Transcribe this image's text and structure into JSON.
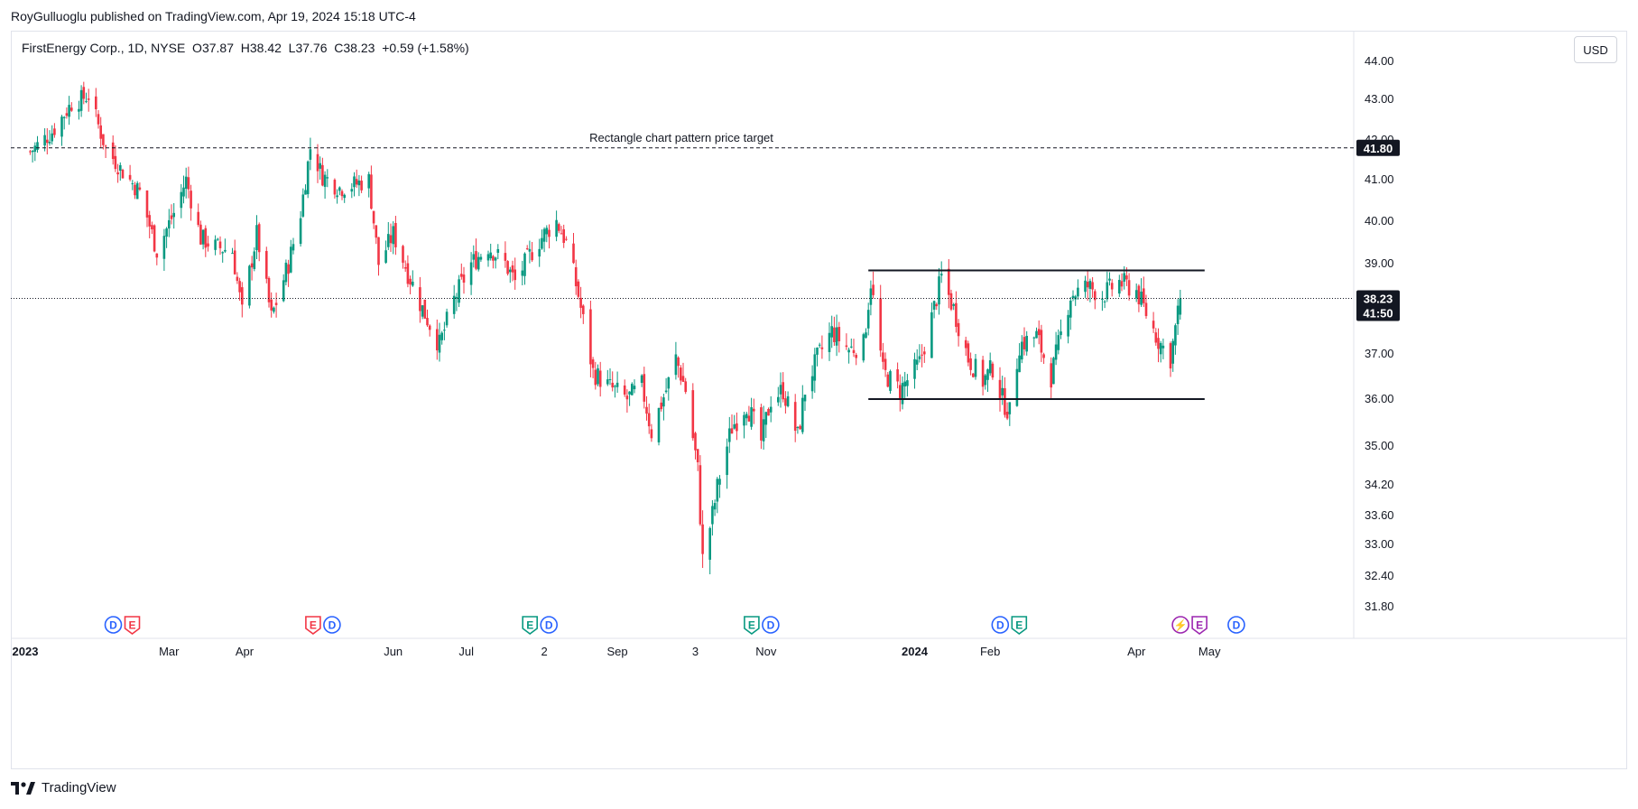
{
  "header": {
    "publisher_text": "RoyGulluoglu published on TradingView.com, Apr 19, 2024 15:18 UTC-4",
    "symbol_line": "FirstEnergy Corp., 1D, NYSE  O37.87  H38.42  L37.76  C38.23  +0.59 (+1.58%)"
  },
  "currency_button": "USD",
  "footer": {
    "logo_text": "TradingView"
  },
  "colors": {
    "up": "#089981",
    "down": "#f23645",
    "text": "#131722",
    "grid": "#e0e3eb"
  },
  "chart_data": {
    "type": "candlestick",
    "y_ticks": [
      "44.00",
      "43.00",
      "42.00",
      "41.00",
      "40.00",
      "39.00",
      "37.00",
      "36.00",
      "35.00",
      "34.20",
      "33.60",
      "33.00",
      "32.40",
      "31.80"
    ],
    "y_tick_values": [
      44.0,
      43.0,
      42.0,
      41.0,
      40.0,
      39.0,
      37.0,
      36.0,
      35.0,
      34.2,
      33.6,
      33.0,
      32.4,
      31.8
    ],
    "x_ticks": [
      {
        "label": "2023",
        "date": "2023-01-01",
        "bold": true
      },
      {
        "label": "Mar",
        "date": "2023-03-01",
        "bold": false
      },
      {
        "label": "Apr",
        "date": "2023-04-01",
        "bold": false
      },
      {
        "label": "Jun",
        "date": "2023-06-01",
        "bold": false
      },
      {
        "label": "Jul",
        "date": "2023-07-01",
        "bold": false
      },
      {
        "label": "2",
        "date": "2023-08-02",
        "bold": false
      },
      {
        "label": "Sep",
        "date": "2023-09-01",
        "bold": false
      },
      {
        "label": "3",
        "date": "2023-10-03",
        "bold": false
      },
      {
        "label": "Nov",
        "date": "2023-11-01",
        "bold": false
      },
      {
        "label": "2024",
        "date": "2024-01-01",
        "bold": true
      },
      {
        "label": "Feb",
        "date": "2024-02-01",
        "bold": false
      },
      {
        "label": "Apr",
        "date": "2024-04-01",
        "bold": false
      },
      {
        "label": "May",
        "date": "2024-05-01",
        "bold": false
      }
    ],
    "last_price": {
      "label": "38.23",
      "value": 38.23,
      "countdown": "41:50"
    },
    "target_line": {
      "label": "41.80",
      "value": 41.8,
      "text": "Rectangle chart pattern price target"
    },
    "rectangle": {
      "top": 38.85,
      "bottom": 36.0,
      "start": "2023-12-13",
      "end": "2024-04-29"
    },
    "anchors": [
      [
        "2023-01-03",
        41.7
      ],
      [
        "2023-01-12",
        42.2
      ],
      [
        "2023-01-20",
        42.9
      ],
      [
        "2023-01-27",
        43.1
      ],
      [
        "2023-02-03",
        41.8
      ],
      [
        "2023-02-10",
        41.2
      ],
      [
        "2023-02-17",
        40.7
      ],
      [
        "2023-02-24",
        39.3
      ],
      [
        "2023-03-03",
        40.2
      ],
      [
        "2023-03-08",
        41.0
      ],
      [
        "2023-03-14",
        39.6
      ],
      [
        "2023-03-20",
        39.4
      ],
      [
        "2023-03-27",
        39.3
      ],
      [
        "2023-03-31",
        37.9
      ],
      [
        "2023-04-06",
        39.7
      ],
      [
        "2023-04-12",
        37.8
      ],
      [
        "2023-04-19",
        39.0
      ],
      [
        "2023-04-24",
        40.2
      ],
      [
        "2023-04-28",
        41.8
      ],
      [
        "2023-05-03",
        41.1
      ],
      [
        "2023-05-10",
        40.8
      ],
      [
        "2023-05-17",
        40.9
      ],
      [
        "2023-05-22",
        41.0
      ],
      [
        "2023-05-26",
        39.0
      ],
      [
        "2023-06-01",
        39.7
      ],
      [
        "2023-06-07",
        38.8
      ],
      [
        "2023-06-13",
        38.0
      ],
      [
        "2023-06-20",
        37.2
      ],
      [
        "2023-06-26",
        38.2
      ],
      [
        "2023-07-03",
        39.0
      ],
      [
        "2023-07-10",
        39.4
      ],
      [
        "2023-07-17",
        39.0
      ],
      [
        "2023-07-21",
        38.6
      ],
      [
        "2023-07-27",
        39.2
      ],
      [
        "2023-08-02",
        39.7
      ],
      [
        "2023-08-07",
        40.0
      ],
      [
        "2023-08-11",
        39.5
      ],
      [
        "2023-08-16",
        38.3
      ],
      [
        "2023-08-22",
        36.6
      ],
      [
        "2023-08-28",
        36.3
      ],
      [
        "2023-09-05",
        36.0
      ],
      [
        "2023-09-11",
        36.3
      ],
      [
        "2023-09-15",
        35.3
      ],
      [
        "2023-09-21",
        36.2
      ],
      [
        "2023-09-25",
        36.9
      ],
      [
        "2023-09-29",
        36.2
      ],
      [
        "2023-10-04",
        34.5
      ],
      [
        "2023-10-06",
        32.7
      ],
      [
        "2023-10-10",
        33.6
      ],
      [
        "2023-10-13",
        34.4
      ],
      [
        "2023-10-18",
        35.4
      ],
      [
        "2023-10-24",
        35.9
      ],
      [
        "2023-10-30",
        35.1
      ],
      [
        "2023-11-03",
        36.0
      ],
      [
        "2023-11-08",
        36.2
      ],
      [
        "2023-11-14",
        35.2
      ],
      [
        "2023-11-17",
        36.2
      ],
      [
        "2023-11-22",
        36.9
      ],
      [
        "2023-11-28",
        37.5
      ],
      [
        "2023-12-05",
        37.1
      ],
      [
        "2023-12-11",
        37.2
      ],
      [
        "2023-12-14",
        38.6
      ],
      [
        "2023-12-19",
        36.6
      ],
      [
        "2023-12-26",
        36.2
      ],
      [
        "2024-01-03",
        36.8
      ],
      [
        "2024-01-08",
        37.8
      ],
      [
        "2024-01-12",
        38.7
      ],
      [
        "2024-01-17",
        38.0
      ],
      [
        "2024-01-23",
        36.9
      ],
      [
        "2024-01-29",
        36.4
      ],
      [
        "2024-02-02",
        36.7
      ],
      [
        "2024-02-06",
        36.0
      ],
      [
        "2024-02-09",
        35.7
      ],
      [
        "2024-02-13",
        37.2
      ],
      [
        "2024-02-20",
        37.4
      ],
      [
        "2024-02-26",
        36.5
      ],
      [
        "2024-02-29",
        37.2
      ],
      [
        "2024-03-05",
        38.3
      ],
      [
        "2024-03-12",
        38.5
      ],
      [
        "2024-03-18",
        38.3
      ],
      [
        "2024-03-25",
        38.6
      ],
      [
        "2024-04-01",
        38.4
      ],
      [
        "2024-04-05",
        37.9
      ],
      [
        "2024-04-10",
        37.3
      ],
      [
        "2024-04-15",
        36.9
      ],
      [
        "2024-04-19",
        38.23
      ]
    ]
  },
  "event_markers": [
    {
      "date": "2023-02-10",
      "icons": [
        "D",
        "E"
      ]
    },
    {
      "date": "2023-05-03",
      "icons": [
        "E",
        "D"
      ]
    },
    {
      "date": "2023-07-31",
      "icons": [
        "E",
        "D"
      ]
    },
    {
      "date": "2023-10-30",
      "icons": [
        "E",
        "D"
      ]
    },
    {
      "date": "2024-02-09",
      "icons": [
        "D",
        "E"
      ]
    },
    {
      "date": "2024-04-23",
      "icons": [
        "S",
        "E"
      ]
    },
    {
      "date": "2024-05-12",
      "icons": [
        "D"
      ]
    }
  ]
}
